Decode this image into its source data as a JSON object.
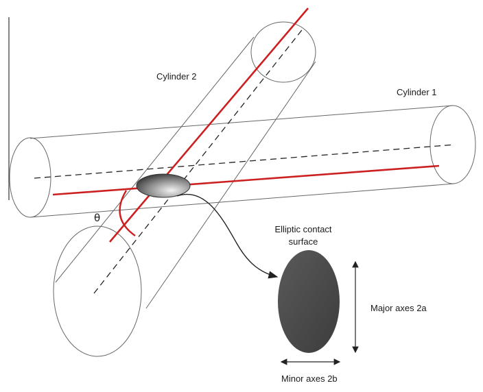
{
  "labels": {
    "cylinder2": "Cylinder 2",
    "cylinder1": "Cylinder 1",
    "theta": "θ",
    "contact_line1": "Elliptic contact",
    "contact_line2": "surface",
    "major_axes": "Major axes 2a",
    "minor_axes": "Minor axes 2b"
  },
  "colors": {
    "axis_red": "#cc1f1f",
    "outline": "#555555",
    "ellipse_dark": "#4a4a4a"
  }
}
